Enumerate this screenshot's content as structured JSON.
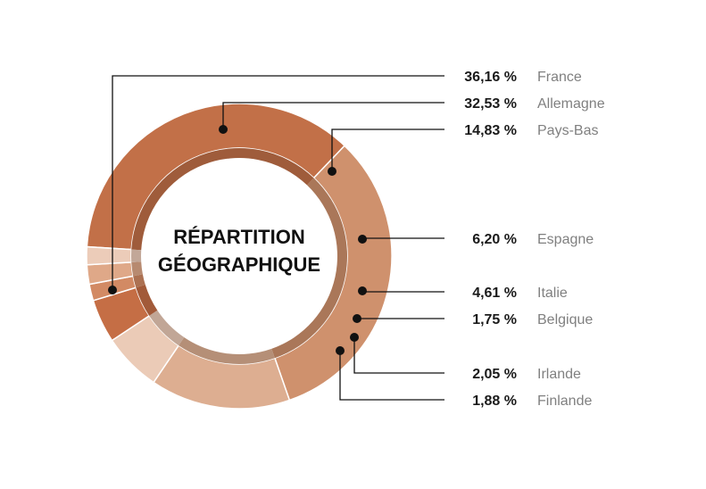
{
  "chart_data": {
    "type": "pie",
    "donut": true,
    "title_lines": [
      "RÉPARTITION",
      "GÉOGRAPHIQUE"
    ],
    "slices": [
      {
        "name": "France",
        "value": 36.16,
        "label": "36,16 %",
        "color": "#c27048"
      },
      {
        "name": "Allemagne",
        "value": 32.53,
        "label": "32,53 %",
        "color": "#cf916d"
      },
      {
        "name": "Pays-Bas",
        "value": 14.83,
        "label": "14,83 %",
        "color": "#ddae91"
      },
      {
        "name": "Espagne",
        "value": 6.2,
        "label": "6,20 %",
        "color": "#ebcbb7"
      },
      {
        "name": "Italie",
        "value": 4.61,
        "label": "4,61 %",
        "color": "#c56e45"
      },
      {
        "name": "Belgique",
        "value": 1.75,
        "label": "1,75 %",
        "color": "#d28a64"
      },
      {
        "name": "Irlande",
        "value": 2.05,
        "label": "2,05 %",
        "color": "#dfa888"
      },
      {
        "name": "Finlande",
        "value": 1.88,
        "label": "1,88 %",
        "color": "#ecccb9"
      }
    ]
  }
}
